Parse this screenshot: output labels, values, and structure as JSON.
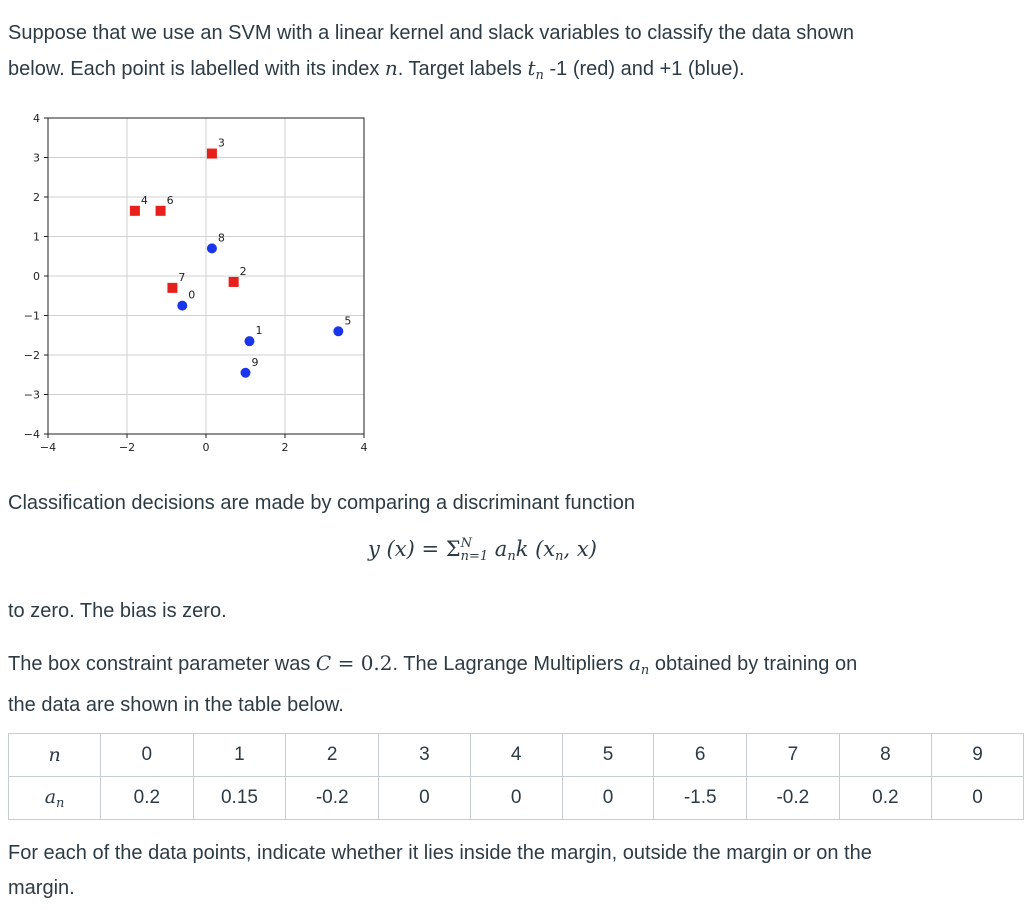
{
  "intro": {
    "line1": "Suppose that we use an SVM with a linear kernel and slack variables to classify the data shown",
    "line2a": "below. Each point is labelled with its index ",
    "n": "n",
    "line2b": ". Target labels ",
    "t": "t",
    "line2c": " -1 (red) and +1 (blue)."
  },
  "classification": {
    "text": "Classification decisions are made by comparing a discriminant function"
  },
  "formula": {
    "lhs": "y (x) = ",
    "sum": "Σ",
    "upper": "N",
    "lower": "n=1",
    "rhs": " a",
    "sub": "n",
    "tail": "k (x",
    "tail_sub": "n",
    "end": ", x)"
  },
  "bias": {
    "text": "to zero. The bias is zero."
  },
  "box": {
    "a": "The box constraint parameter was ",
    "C": "C",
    "eq": " = 0.2",
    "b": ". The Lagrange Multipliers ",
    "an": "a",
    "an_sub": "n",
    "c": " obtained by training on",
    "line2": "the data are shown in the table below."
  },
  "question": {
    "line1": "For each of the data points, indicate whether it lies inside the margin, outside the margin or on the",
    "line2": "margin."
  },
  "table": {
    "header_n": "n",
    "header_a": "a",
    "header_a_sub": "n",
    "n": [
      "0",
      "1",
      "2",
      "3",
      "4",
      "5",
      "6",
      "7",
      "8",
      "9"
    ],
    "a": [
      "0.2",
      "0.15",
      "-0.2",
      "0",
      "0",
      "0",
      "-1.5",
      "-0.2",
      "0.2",
      "0"
    ]
  },
  "colors": {
    "red_class": "#e8201c",
    "blue_class": "#1a35ee"
  },
  "chart_data": {
    "type": "scatter",
    "xlim": [
      -4,
      4
    ],
    "ylim": [
      -4,
      4
    ],
    "xticks": [
      "-4",
      "-2",
      "0",
      "2",
      "4"
    ],
    "yticks": [
      "4",
      "3",
      "2",
      "1",
      "0",
      "-1",
      "-2",
      "-3",
      "-4"
    ],
    "grid": true,
    "points": [
      {
        "label": "0",
        "x": -0.6,
        "y": -0.75,
        "cls": "blue"
      },
      {
        "label": "1",
        "x": 1.1,
        "y": -1.65,
        "cls": "blue"
      },
      {
        "label": "2",
        "x": 0.7,
        "y": -0.15,
        "cls": "red"
      },
      {
        "label": "3",
        "x": 0.15,
        "y": 3.1,
        "cls": "red"
      },
      {
        "label": "4",
        "x": -1.8,
        "y": 1.65,
        "cls": "red"
      },
      {
        "label": "5",
        "x": 3.35,
        "y": -1.4,
        "cls": "blue"
      },
      {
        "label": "6",
        "x": -1.15,
        "y": 1.65,
        "cls": "red"
      },
      {
        "label": "7",
        "x": -0.85,
        "y": -0.3,
        "cls": "red"
      },
      {
        "label": "8",
        "x": 0.15,
        "y": 0.7,
        "cls": "blue"
      },
      {
        "label": "9",
        "x": 1.0,
        "y": -2.45,
        "cls": "blue"
      }
    ]
  }
}
